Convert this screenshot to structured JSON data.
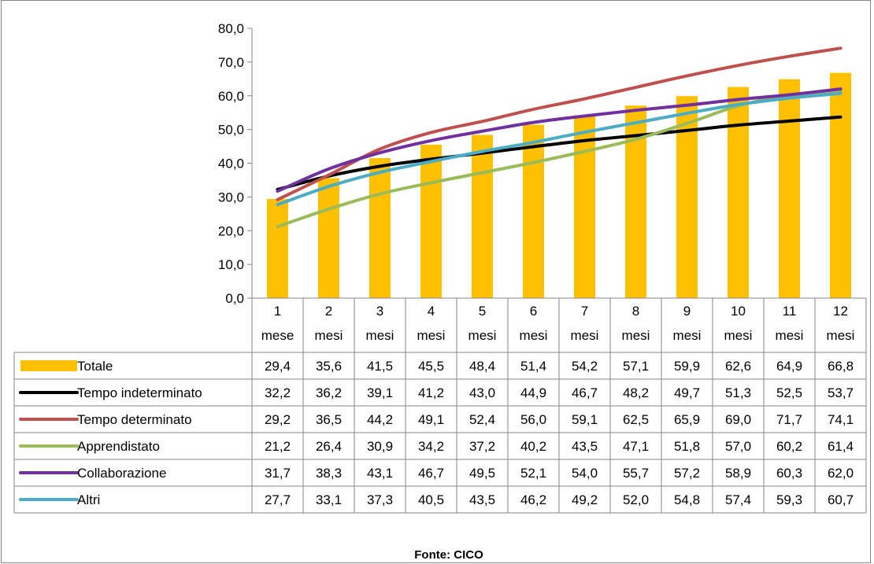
{
  "chart_data": {
    "type": "bar",
    "categories": [
      [
        "1",
        "mese"
      ],
      [
        "2",
        "mesi"
      ],
      [
        "3",
        "mesi"
      ],
      [
        "4",
        "mesi"
      ],
      [
        "5",
        "mesi"
      ],
      [
        "6",
        "mesi"
      ],
      [
        "7",
        "mesi"
      ],
      [
        "8",
        "mesi"
      ],
      [
        "9",
        "mesi"
      ],
      [
        "10",
        "mesi"
      ],
      [
        "11",
        "mesi"
      ],
      [
        "12",
        "mesi"
      ]
    ],
    "ylim": [
      0,
      80
    ],
    "yticks": [
      "0,0",
      "10,0",
      "20,0",
      "30,0",
      "40,0",
      "50,0",
      "60,0",
      "70,0",
      "80,0"
    ],
    "ytick_values": [
      0,
      10,
      20,
      30,
      40,
      50,
      60,
      70,
      80
    ],
    "grid": false,
    "legend": "data-table",
    "series": [
      {
        "name": "Totale",
        "kind": "bar",
        "color": "#FFC000",
        "values": [
          29.4,
          35.6,
          41.5,
          45.5,
          48.4,
          51.4,
          54.2,
          57.1,
          59.9,
          62.6,
          64.9,
          66.8
        ],
        "labels": [
          "29,4",
          "35,6",
          "41,5",
          "45,5",
          "48,4",
          "51,4",
          "54,2",
          "57,1",
          "59,9",
          "62,6",
          "64,9",
          "66,8"
        ]
      },
      {
        "name": "Tempo indeterminato",
        "kind": "line",
        "color": "#000000",
        "values": [
          32.2,
          36.2,
          39.1,
          41.2,
          43.0,
          44.9,
          46.7,
          48.2,
          49.7,
          51.3,
          52.5,
          53.7
        ],
        "labels": [
          "32,2",
          "36,2",
          "39,1",
          "41,2",
          "43,0",
          "44,9",
          "46,7",
          "48,2",
          "49,7",
          "51,3",
          "52,5",
          "53,7"
        ]
      },
      {
        "name": "Tempo determinato",
        "kind": "line",
        "color": "#C0504D",
        "values": [
          29.2,
          36.5,
          44.2,
          49.1,
          52.4,
          56.0,
          59.1,
          62.5,
          65.9,
          69.0,
          71.7,
          74.1
        ],
        "labels": [
          "29,2",
          "36,5",
          "44,2",
          "49,1",
          "52,4",
          "56,0",
          "59,1",
          "62,5",
          "65,9",
          "69,0",
          "71,7",
          "74,1"
        ]
      },
      {
        "name": "Apprendistato",
        "kind": "line",
        "color": "#9BBB59",
        "values": [
          21.2,
          26.4,
          30.9,
          34.2,
          37.2,
          40.2,
          43.5,
          47.1,
          51.8,
          57.0,
          60.2,
          61.4
        ],
        "labels": [
          "21,2",
          "26,4",
          "30,9",
          "34,2",
          "37,2",
          "40,2",
          "43,5",
          "47,1",
          "51,8",
          "57,0",
          "60,2",
          "61,4"
        ]
      },
      {
        "name": "Collaborazione",
        "kind": "line",
        "color": "#7030A0",
        "values": [
          31.7,
          38.3,
          43.1,
          46.7,
          49.5,
          52.1,
          54.0,
          55.7,
          57.2,
          58.9,
          60.3,
          62.0
        ],
        "labels": [
          "31,7",
          "38,3",
          "43,1",
          "46,7",
          "49,5",
          "52,1",
          "54,0",
          "55,7",
          "57,2",
          "58,9",
          "60,3",
          "62,0"
        ]
      },
      {
        "name": "Altri",
        "kind": "line",
        "color": "#4BACC6",
        "values": [
          27.7,
          33.1,
          37.3,
          40.5,
          43.5,
          46.2,
          49.2,
          52.0,
          54.8,
          57.4,
          59.3,
          60.7
        ],
        "labels": [
          "27,7",
          "33,1",
          "37,3",
          "40,5",
          "43,5",
          "46,2",
          "49,2",
          "52,0",
          "54,8",
          "57,4",
          "59,3",
          "60,7"
        ]
      }
    ],
    "source_note": "Fonte: CICO"
  }
}
